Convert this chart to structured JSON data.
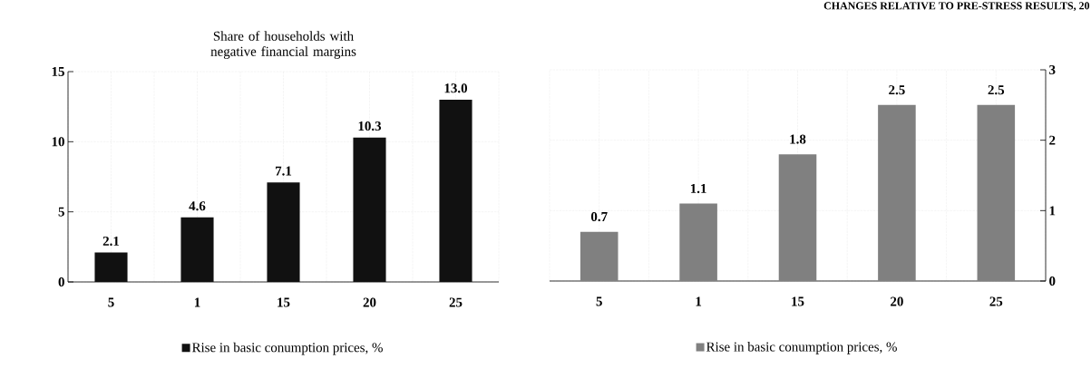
{
  "chart_data": [
    {
      "type": "bar",
      "title": "Share of households with negative financial margins",
      "categories": [
        "5",
        "1",
        "15",
        "20",
        "25"
      ],
      "series": [
        {
          "name": "Rise in basic conumption prices, %",
          "color": "#111111",
          "values": [
            2.1,
            4.6,
            7.1,
            10.3,
            13.0
          ]
        }
      ],
      "value_labels": [
        "2.1",
        "4.6",
        "7.1",
        "10.3",
        "13.0"
      ],
      "ylim": [
        0,
        15
      ],
      "yticks": [
        0,
        5,
        10,
        15
      ],
      "grid": true,
      "legend": "bottom"
    },
    {
      "type": "bar",
      "title": "CHANGES RELATIVE TO PRE-STRESS RESULTS, 20",
      "categories": [
        "5",
        "1",
        "15",
        "20",
        "25"
      ],
      "series": [
        {
          "name": "Rise in basic conumption prices, %",
          "color": "#808080",
          "values": [
            0.7,
            1.1,
            1.8,
            2.5,
            2.5
          ],
          "axis": "y2"
        }
      ],
      "y2lim": [
        0,
        3
      ],
      "y2ticks": [
        0,
        1,
        2,
        3
      ],
      "data_labels": true,
      "grid": true,
      "legend": "bottom"
    }
  ]
}
